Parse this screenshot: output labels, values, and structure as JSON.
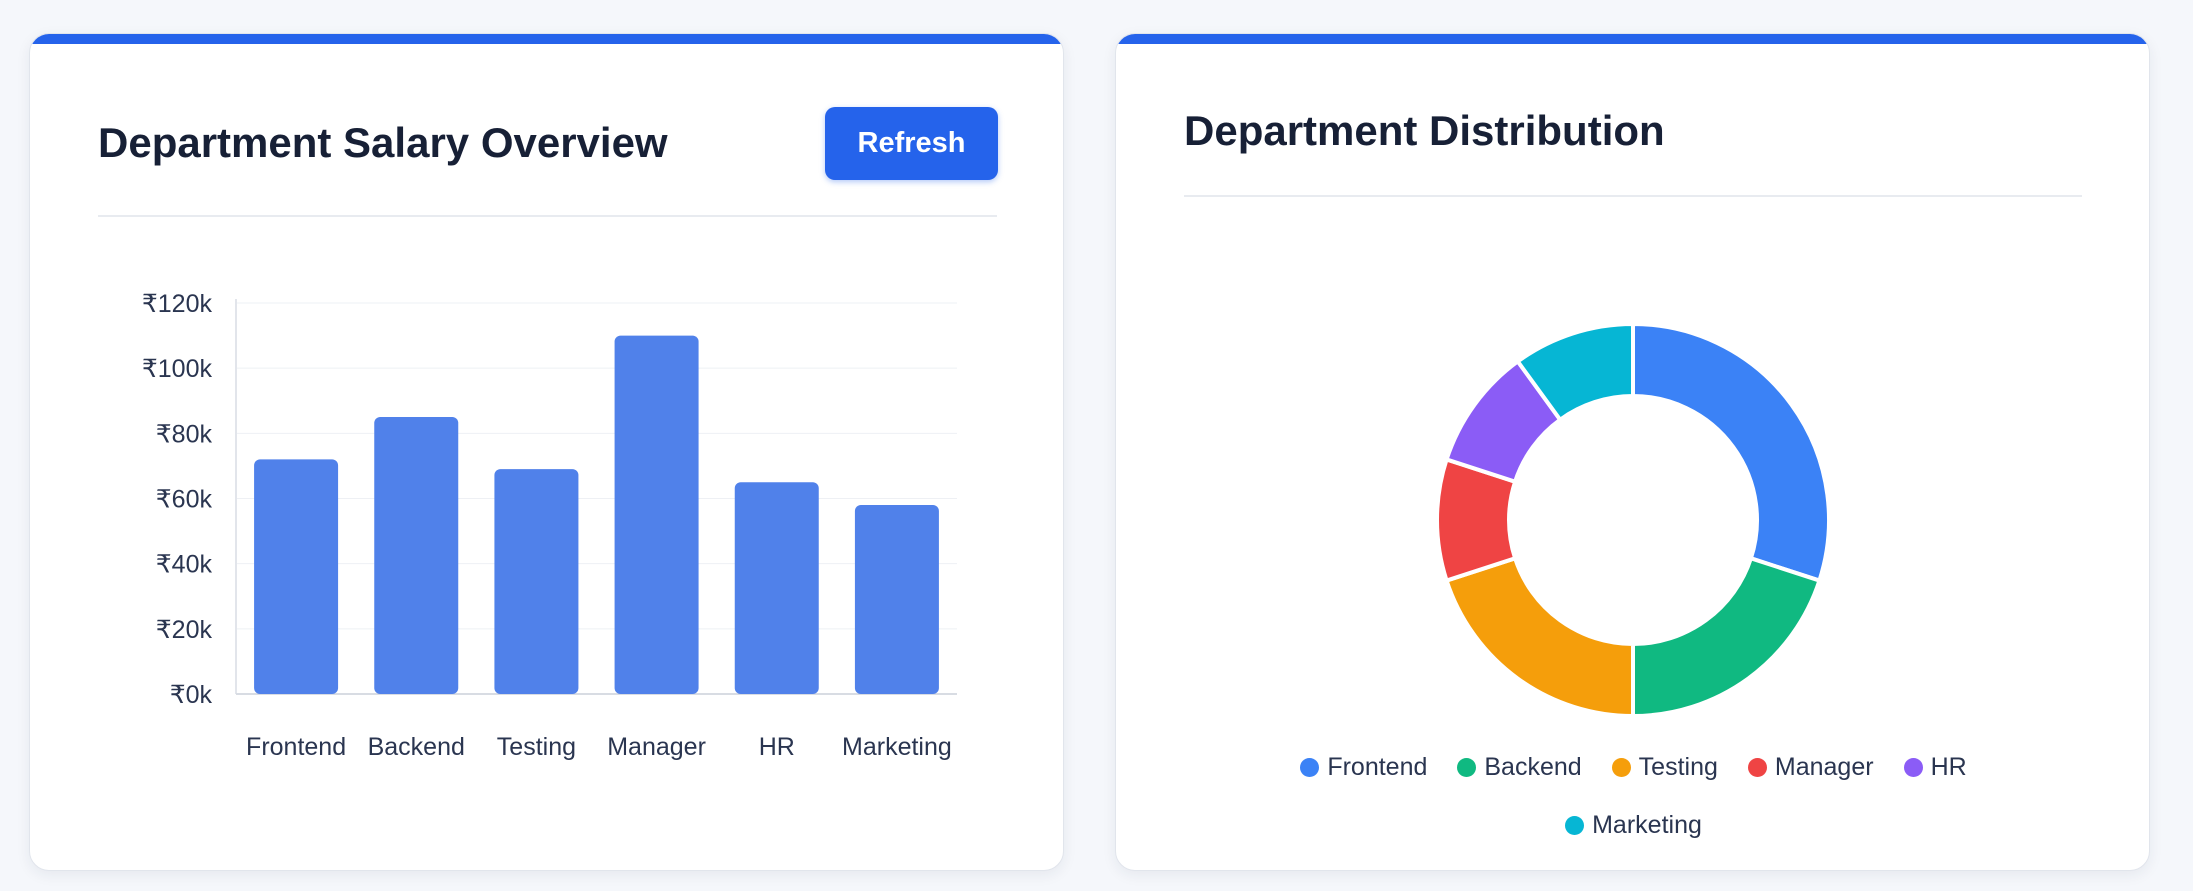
{
  "colors": {
    "accent": "#2563eb",
    "bar": "#5081ea",
    "frontend": "#3b82f6",
    "backend": "#10b981",
    "testing": "#f59e0b",
    "manager": "#ef4444",
    "hr": "#8b5cf6",
    "marketing": "#06b6d4"
  },
  "salary_card": {
    "title": "Department Salary Overview",
    "refresh_label": "Refresh"
  },
  "distribution_card": {
    "title": "Department Distribution"
  },
  "chart_data": [
    {
      "type": "bar",
      "title": "Department Salary Overview",
      "categories": [
        "Frontend",
        "Backend",
        "Testing",
        "Manager",
        "HR",
        "Marketing"
      ],
      "values": [
        72000,
        85000,
        69000,
        110000,
        65000,
        58000
      ],
      "ylim": [
        0,
        120000
      ],
      "yticks": [
        0,
        20000,
        40000,
        60000,
        80000,
        100000,
        120000
      ],
      "ytick_labels": [
        "₹0k",
        "₹20k",
        "₹40k",
        "₹60k",
        "₹80k",
        "₹100k",
        "₹120k"
      ],
      "xlabel": "",
      "ylabel": "",
      "grid": true,
      "legend": false
    },
    {
      "type": "pie",
      "title": "Department Distribution",
      "donut": true,
      "labels": [
        "Frontend",
        "Backend",
        "Testing",
        "Manager",
        "HR",
        "Marketing"
      ],
      "values": [
        30,
        20,
        20,
        10,
        10,
        10
      ],
      "colors": [
        "#3b82f6",
        "#10b981",
        "#f59e0b",
        "#ef4444",
        "#8b5cf6",
        "#06b6d4"
      ],
      "legend": "bottom"
    }
  ]
}
